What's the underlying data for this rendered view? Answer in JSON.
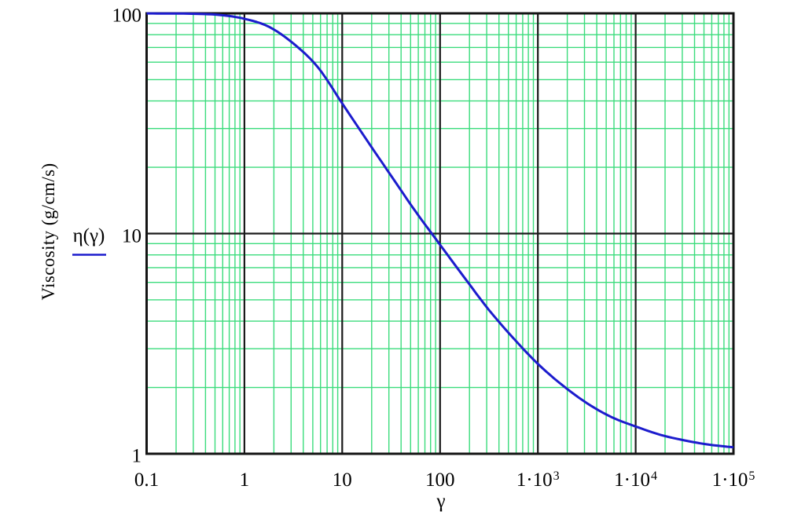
{
  "chart_data": {
    "type": "line",
    "title": "",
    "xlabel": "γ",
    "ylabel": "Viscosity (g/cm/s)",
    "x_scale": "log",
    "y_scale": "log",
    "xlim": [
      0.1,
      100000
    ],
    "ylim": [
      1,
      100
    ],
    "grid": {
      "on": true,
      "major_color": "#1a1a1a",
      "minor_color": "#3bdc7c",
      "major_x": [
        1,
        10,
        100,
        1000,
        10000
      ],
      "major_y": [
        10
      ],
      "minor_per_decade": [
        2,
        3,
        4,
        5,
        6,
        7,
        8,
        9
      ]
    },
    "legend": {
      "entry": "η(γ)",
      "position": "left-middle"
    },
    "x_ticks": [
      {
        "v": 0.1,
        "label": "0.1"
      },
      {
        "v": 1,
        "label": "1"
      },
      {
        "v": 10,
        "label": "10"
      },
      {
        "v": 100,
        "label": "100"
      },
      {
        "v": 1000,
        "base": "1·10",
        "exp": "3"
      },
      {
        "v": 10000,
        "base": "1·10",
        "exp": "4"
      },
      {
        "v": 100000,
        "base": "1·10",
        "exp": "5"
      }
    ],
    "y_ticks": [
      {
        "v": 100,
        "label": "100"
      },
      {
        "v": 10,
        "label": "10"
      },
      {
        "v": 1,
        "label": "1"
      }
    ],
    "series": [
      {
        "name": "η(γ)",
        "color": "#1c1ccd",
        "x": [
          0.1,
          0.178,
          0.316,
          0.562,
          1,
          1.78,
          3.16,
          5.62,
          10,
          17.8,
          31.6,
          56.2,
          100,
          178,
          316,
          562,
          1000,
          1780,
          3160,
          5620,
          10000,
          17800,
          31600,
          56200,
          100000
        ],
        "y": [
          99.9,
          99.8,
          99.5,
          98.3,
          94.5,
          86.9,
          73.0,
          57.0,
          39.0,
          26.6,
          18.3,
          12.6,
          8.9,
          6.3,
          4.5,
          3.35,
          2.56,
          2.05,
          1.7,
          1.47,
          1.33,
          1.22,
          1.15,
          1.1,
          1.07
        ]
      }
    ]
  }
}
